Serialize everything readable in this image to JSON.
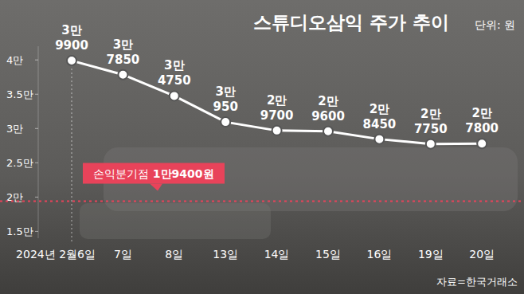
{
  "chart_data": {
    "type": "line",
    "title": "스튜디오삼익 주가 추이",
    "subtitle": "단위: 원",
    "source": "자료=한국거래소",
    "categories": [
      "2024년 2월6일",
      "7일",
      "8일",
      "13일",
      "14일",
      "15일",
      "16일",
      "19일",
      "20일"
    ],
    "values": [
      39900,
      37850,
      34750,
      30950,
      29700,
      29600,
      28450,
      27750,
      27800
    ],
    "value_labels": [
      "3만 9900",
      "3만 7850",
      "3만 4750",
      "3만 950",
      "2만 9700",
      "2만 9600",
      "2만 8450",
      "2만 7750",
      "2만 7800"
    ],
    "color": "#ffffff",
    "marker": "circle",
    "ylim": [
      14000,
      42000
    ],
    "yticks": [
      {
        "value": 15000,
        "label": "1.5만"
      },
      {
        "value": 20000,
        "label": "2만"
      },
      {
        "value": 25000,
        "label": "2.5만"
      },
      {
        "value": 30000,
        "label": "3만"
      },
      {
        "value": 35000,
        "label": "3.5만"
      },
      {
        "value": 40000,
        "label": "4만"
      }
    ],
    "grid": false,
    "data_labels": true,
    "annotations": [
      {
        "type": "hline",
        "value": 19400,
        "label": "손익분기점 1만9400원",
        "color": "#e8435a"
      }
    ]
  }
}
